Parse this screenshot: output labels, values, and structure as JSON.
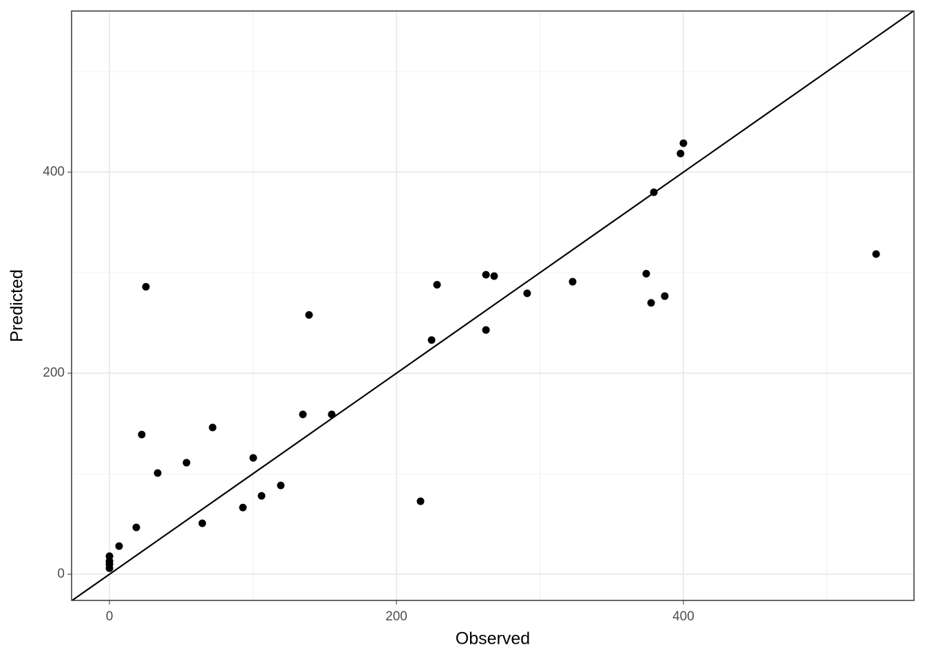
{
  "chart_data": {
    "type": "scatter",
    "x_label": "Observed",
    "y_label": "Predicted",
    "x": [
      0,
      0,
      0,
      0,
      6.7,
      18.7,
      22.5,
      25.4,
      33.6,
      53.7,
      64.7,
      71.9,
      93,
      100.2,
      106,
      119.4,
      134.8,
      139.1,
      154.9,
      216.8,
      224.5,
      228.3,
      262.4,
      262.4,
      268.1,
      291.1,
      322.8,
      374.1,
      377.5,
      379.4,
      387,
      398,
      400,
      534.3
    ],
    "values": [
      18,
      13,
      10,
      6,
      28,
      46.6,
      139,
      286,
      100.7,
      111,
      50.7,
      146,
      66.4,
      115.8,
      78,
      88.4,
      159,
      258,
      159,
      72.6,
      233,
      288,
      298,
      243,
      296.6,
      279.5,
      291,
      299,
      270,
      380,
      276.7,
      418.5,
      428.8,
      318.5
    ],
    "color": "#000000",
    "xlim": [
      -26.4,
      560.7
    ],
    "ylim": [
      -26,
      560.3
    ],
    "xticks": [
      0,
      200,
      400
    ],
    "yticks": [
      0,
      200,
      400
    ],
    "grid": true,
    "minor_grid": true,
    "identity_line": true
  }
}
